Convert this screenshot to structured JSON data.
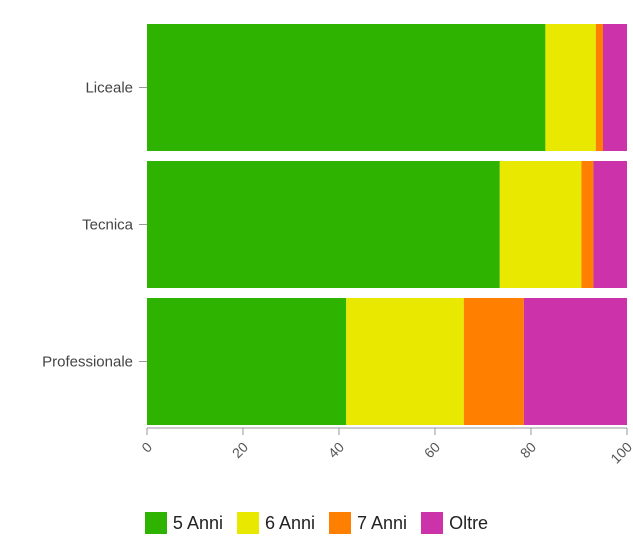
{
  "chart_data": {
    "type": "bar",
    "orientation": "horizontal",
    "stacked": true,
    "categories": [
      "Liceale",
      "Tecnica",
      "Professionale"
    ],
    "series": [
      {
        "name": "5 Anni",
        "color": "#2db300",
        "values": [
          83,
          73.5,
          41.5
        ]
      },
      {
        "name": "6 Anni",
        "color": "#e8e800",
        "values": [
          10.5,
          17,
          24.5
        ]
      },
      {
        "name": "7 Anni",
        "color": "#ff7f00",
        "values": [
          1.5,
          2.5,
          12.5
        ]
      },
      {
        "name": "Oltre",
        "color": "#cc33aa",
        "values": [
          5,
          7,
          21.5
        ]
      }
    ],
    "xlim": [
      0,
      100
    ],
    "xticks": [
      "0",
      "20",
      "40",
      "60",
      "80",
      "100"
    ],
    "grid": false,
    "legend_position": "bottom"
  }
}
